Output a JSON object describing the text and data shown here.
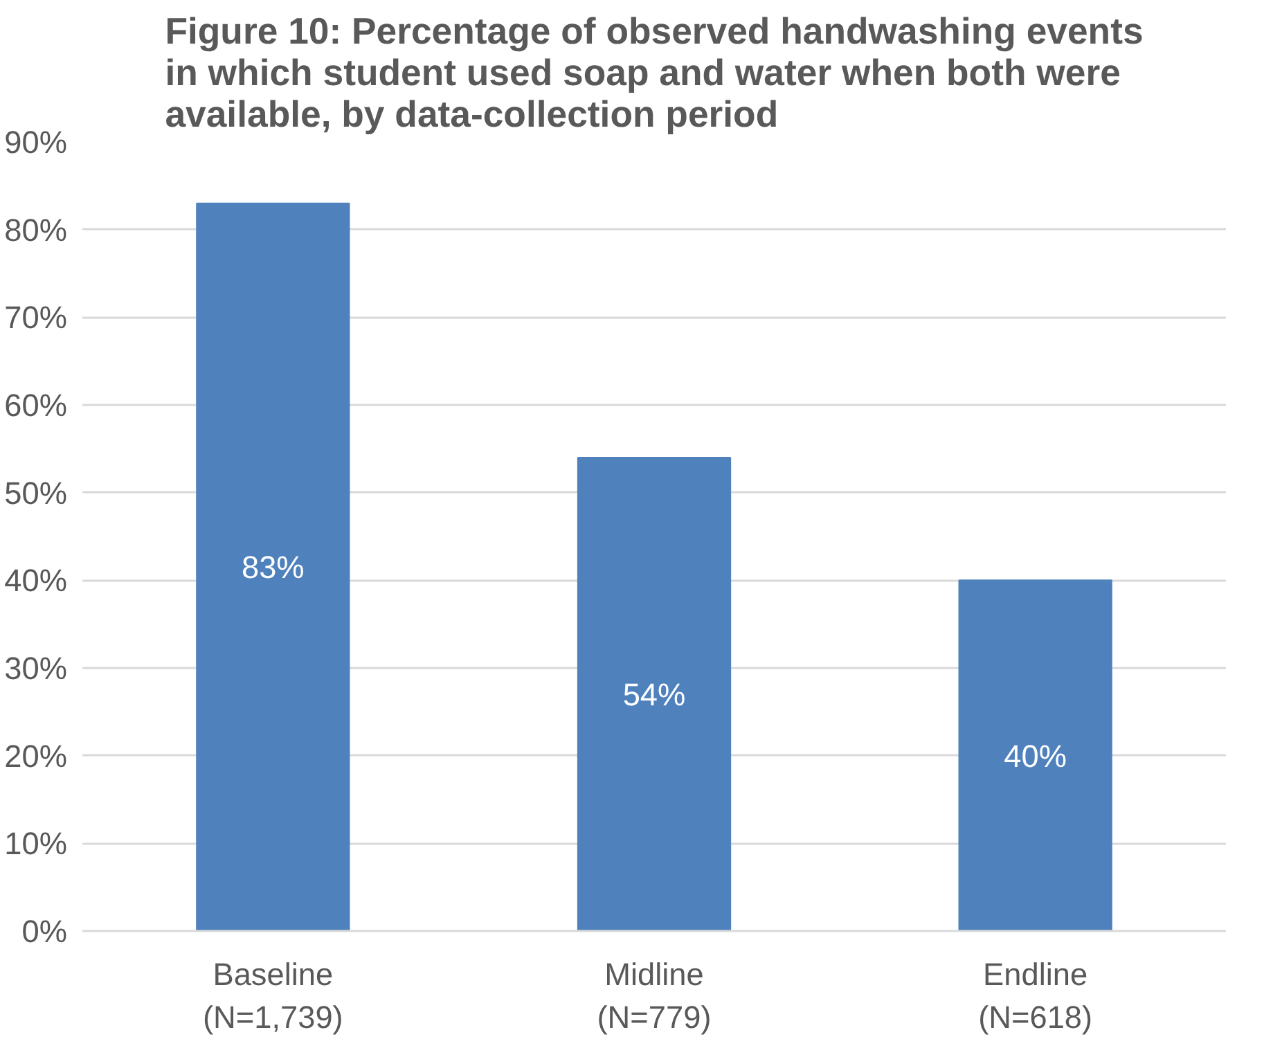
{
  "chart_data": {
    "type": "bar",
    "title": "Figure 10: Percentage of observed handwashing events in which student used soap and water when both were available, by data-collection period",
    "categories": [
      "Baseline\n(N=1,739)",
      "Midline\n(N=779)",
      "Endline\n(N=618)"
    ],
    "values": [
      83,
      54,
      40
    ],
    "color": "#4f81bd",
    "value_labels": [
      "83%",
      "54%",
      "40%"
    ],
    "ylim": [
      0,
      90
    ],
    "yticks": [
      {
        "value": 0,
        "label": "0%"
      },
      {
        "value": 10,
        "label": "10%"
      },
      {
        "value": 20,
        "label": "20%"
      },
      {
        "value": 30,
        "label": "30%"
      },
      {
        "value": 40,
        "label": "40%"
      },
      {
        "value": 50,
        "label": "50%"
      },
      {
        "value": 60,
        "label": "60%"
      },
      {
        "value": 70,
        "label": "70%"
      },
      {
        "value": 80,
        "label": "80%"
      },
      {
        "value": 90,
        "label": "90%"
      }
    ],
    "grid": "y"
  }
}
